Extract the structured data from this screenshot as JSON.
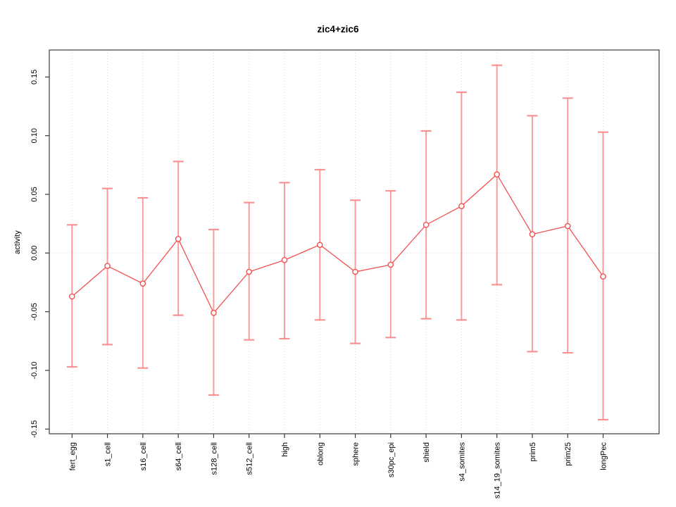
{
  "chart_data": {
    "type": "line",
    "title": "zic4+zic6",
    "xlabel": "",
    "ylabel": "activity",
    "categories": [
      "fert_egg",
      "s1_cell",
      "s16_cell",
      "s64_cell",
      "s128_cell",
      "s512_cell",
      "high",
      "oblong",
      "sphere",
      "s30pc_epi",
      "shield",
      "s4_somites",
      "s14_19_somites",
      "prim5",
      "prim25",
      "longPec"
    ],
    "series": [
      {
        "name": "activity",
        "values": [
          -0.037,
          -0.011,
          -0.026,
          0.012,
          -0.051,
          -0.016,
          -0.006,
          0.007,
          -0.016,
          -0.01,
          0.024,
          0.04,
          0.067,
          0.016,
          0.023,
          -0.02
        ],
        "error_high": [
          0.024,
          0.055,
          0.047,
          0.078,
          0.02,
          0.043,
          0.06,
          0.071,
          0.045,
          0.053,
          0.104,
          0.137,
          0.16,
          0.117,
          0.132,
          0.103
        ],
        "error_low": [
          -0.097,
          -0.078,
          -0.098,
          -0.053,
          -0.121,
          -0.074,
          -0.073,
          -0.057,
          -0.077,
          -0.072,
          -0.056,
          -0.057,
          -0.027,
          -0.084,
          -0.085,
          -0.142
        ]
      }
    ],
    "yticks": [
      -0.15,
      -0.1,
      -0.05,
      0.0,
      0.05,
      0.1,
      0.15
    ],
    "ytick_labels": [
      "-0.15",
      "-0.10",
      "-0.05",
      "0.00",
      "0.05",
      "0.10",
      "0.15"
    ],
    "ylim": [
      -0.154,
      0.173
    ],
    "grid": {
      "vertical_per_category": true,
      "horizontal_at_zero": true,
      "style": "dotted"
    },
    "legend": null,
    "marker": "open-circle",
    "colors": {
      "line": "#f25050",
      "point": "#f25050",
      "error_bar": "#f98d8d",
      "grid": "#d9d9d9",
      "frame": "#3c3c3c",
      "text": "#000000",
      "background": "#ffffff"
    }
  }
}
